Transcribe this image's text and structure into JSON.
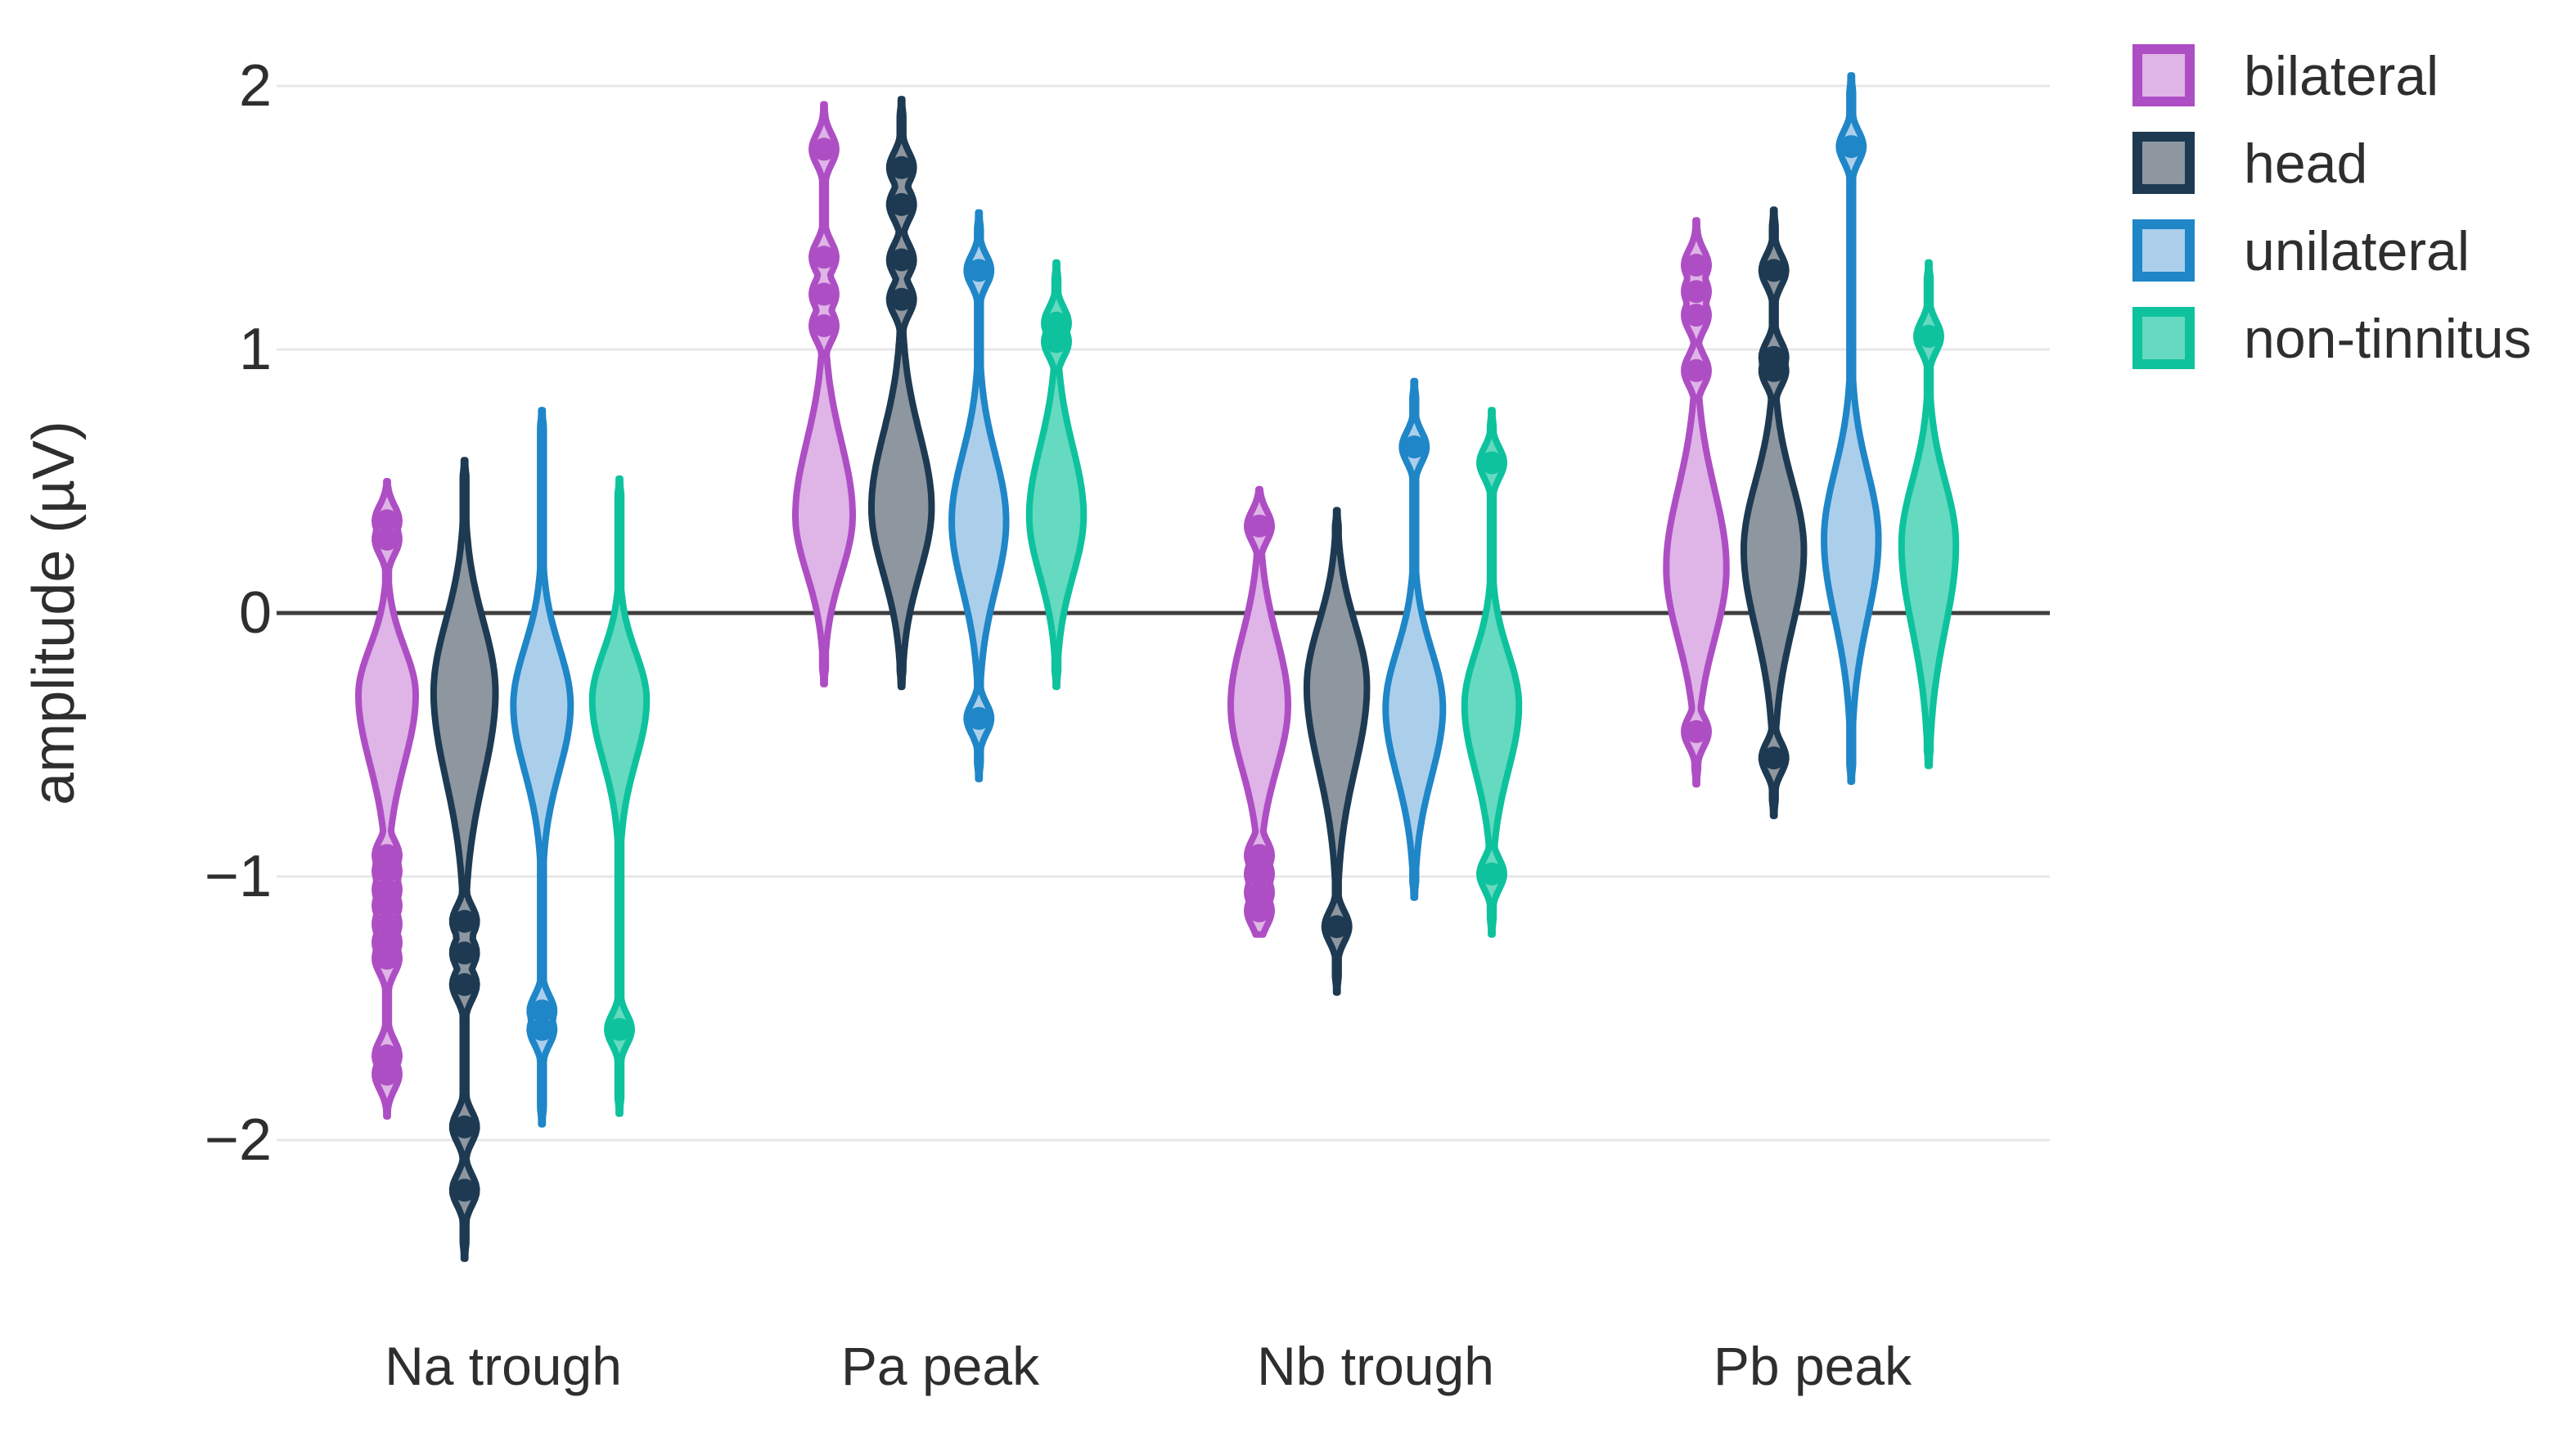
{
  "chart_data": {
    "type": "violin",
    "title": "",
    "xlabel": "",
    "ylabel": "amplitude (µV)",
    "ylim": [
      -2.6,
      2.15
    ],
    "yticks": [
      2,
      1,
      0,
      -1,
      -2
    ],
    "ytick_labels": [
      "2",
      "1",
      "0",
      "−1",
      "−2"
    ],
    "grid": "horizontal",
    "zero_line": 0,
    "legend_position": "top-right",
    "categories": [
      "Na trough",
      "Pa peak",
      "Nb trough",
      "Pb peak"
    ],
    "series": [
      {
        "name": "bilateral",
        "stroke": "#ae4ec4",
        "fill": "#dfb4e7",
        "violins": [
          {
            "category": "Na trough",
            "min": -1.91,
            "max": 0.5,
            "mode": -0.31,
            "spread_up": 0.18,
            "spread_down": 0.26,
            "rel_width": 1.0,
            "points": [
              0.35,
              0.28,
              -0.92,
              -0.98,
              -1.05,
              -1.11,
              -1.18,
              -1.25,
              -1.31,
              -1.68,
              -1.75
            ]
          },
          {
            "category": "Pa peak",
            "min": -0.27,
            "max": 1.93,
            "mode": 0.37,
            "spread_up": 0.28,
            "spread_down": 0.22,
            "rel_width": 1.0,
            "points": [
              1.76,
              1.35,
              1.21,
              1.09
            ]
          },
          {
            "category": "Nb trough",
            "min": -1.22,
            "max": 0.47,
            "mode": -0.35,
            "spread_up": 0.26,
            "spread_down": 0.24,
            "rel_width": 1.0,
            "points": [
              0.33,
              -0.92,
              -0.99,
              -1.06,
              -1.13
            ]
          },
          {
            "category": "Pb peak",
            "min": -0.65,
            "max": 1.49,
            "mode": 0.17,
            "spread_up": 0.3,
            "spread_down": 0.27,
            "rel_width": 1.05,
            "points": [
              1.32,
              1.22,
              1.13,
              0.92,
              -0.45
            ]
          }
        ]
      },
      {
        "name": "head",
        "stroke": "#1d3a52",
        "fill": "#8e969f",
        "violins": [
          {
            "category": "Na trough",
            "min": -2.45,
            "max": 0.58,
            "mode": -0.3,
            "spread_up": 0.27,
            "spread_down": 0.33,
            "rel_width": 1.08,
            "points": [
              -1.17,
              -1.29,
              -1.41,
              -1.95,
              -2.19
            ]
          },
          {
            "category": "Pa peak",
            "min": -0.28,
            "max": 1.95,
            "mode": 0.4,
            "spread_up": 0.28,
            "spread_down": 0.25,
            "rel_width": 1.05,
            "points": [
              1.69,
              1.55,
              1.34,
              1.19
            ]
          },
          {
            "category": "Nb trough",
            "min": -1.44,
            "max": 0.39,
            "mode": -0.28,
            "spread_up": 0.24,
            "spread_down": 0.31,
            "rel_width": 1.05,
            "points": [
              -1.19
            ]
          },
          {
            "category": "Pb peak",
            "min": -0.77,
            "max": 1.53,
            "mode": 0.24,
            "spread_up": 0.26,
            "spread_down": 0.3,
            "rel_width": 1.05,
            "points": [
              1.3,
              0.97,
              0.92,
              -0.55
            ]
          }
        ]
      },
      {
        "name": "unilateral",
        "stroke": "#1f86c8",
        "fill": "#abcfeb",
        "violins": [
          {
            "category": "Na trough",
            "min": -1.94,
            "max": 0.77,
            "mode": -0.35,
            "spread_up": 0.22,
            "spread_down": 0.25,
            "rel_width": 1.0,
            "points": [
              -1.51,
              -1.58
            ]
          },
          {
            "category": "Pa peak",
            "min": -0.63,
            "max": 1.52,
            "mode": 0.35,
            "spread_up": 0.25,
            "spread_down": 0.26,
            "rel_width": 0.95,
            "points": [
              1.3,
              -0.4
            ]
          },
          {
            "category": "Nb trough",
            "min": -1.08,
            "max": 0.88,
            "mode": -0.36,
            "spread_up": 0.22,
            "spread_down": 0.26,
            "rel_width": 1.0,
            "points": [
              0.63
            ]
          },
          {
            "category": "Pb peak",
            "min": -0.64,
            "max": 2.04,
            "mode": 0.28,
            "spread_up": 0.26,
            "spread_down": 0.3,
            "rel_width": 0.95,
            "points": [
              1.77
            ]
          }
        ]
      },
      {
        "name": "non-tinnitus",
        "stroke": "#0ec29e",
        "fill": "#65dac0",
        "violins": [
          {
            "category": "Na trough",
            "min": -1.9,
            "max": 0.51,
            "mode": -0.33,
            "spread_up": 0.18,
            "spread_down": 0.23,
            "rel_width": 0.95,
            "points": [
              -1.58
            ]
          },
          {
            "category": "Pa peak",
            "min": -0.28,
            "max": 1.33,
            "mode": 0.37,
            "spread_up": 0.26,
            "spread_down": 0.23,
            "rel_width": 0.95,
            "points": [
              1.1,
              1.03
            ]
          },
          {
            "category": "Nb trough",
            "min": -1.22,
            "max": 0.77,
            "mode": -0.35,
            "spread_up": 0.2,
            "spread_down": 0.25,
            "rel_width": 0.95,
            "points": [
              0.57,
              -0.99
            ]
          },
          {
            "category": "Pb peak",
            "min": -0.58,
            "max": 1.33,
            "mode": 0.26,
            "spread_up": 0.24,
            "spread_down": 0.32,
            "rel_width": 0.95,
            "points": [
              1.05
            ]
          }
        ]
      }
    ]
  },
  "legend": {
    "items": [
      {
        "label": "bilateral"
      },
      {
        "label": "head"
      },
      {
        "label": "unilateral"
      },
      {
        "label": "non-tinnitus"
      }
    ]
  }
}
